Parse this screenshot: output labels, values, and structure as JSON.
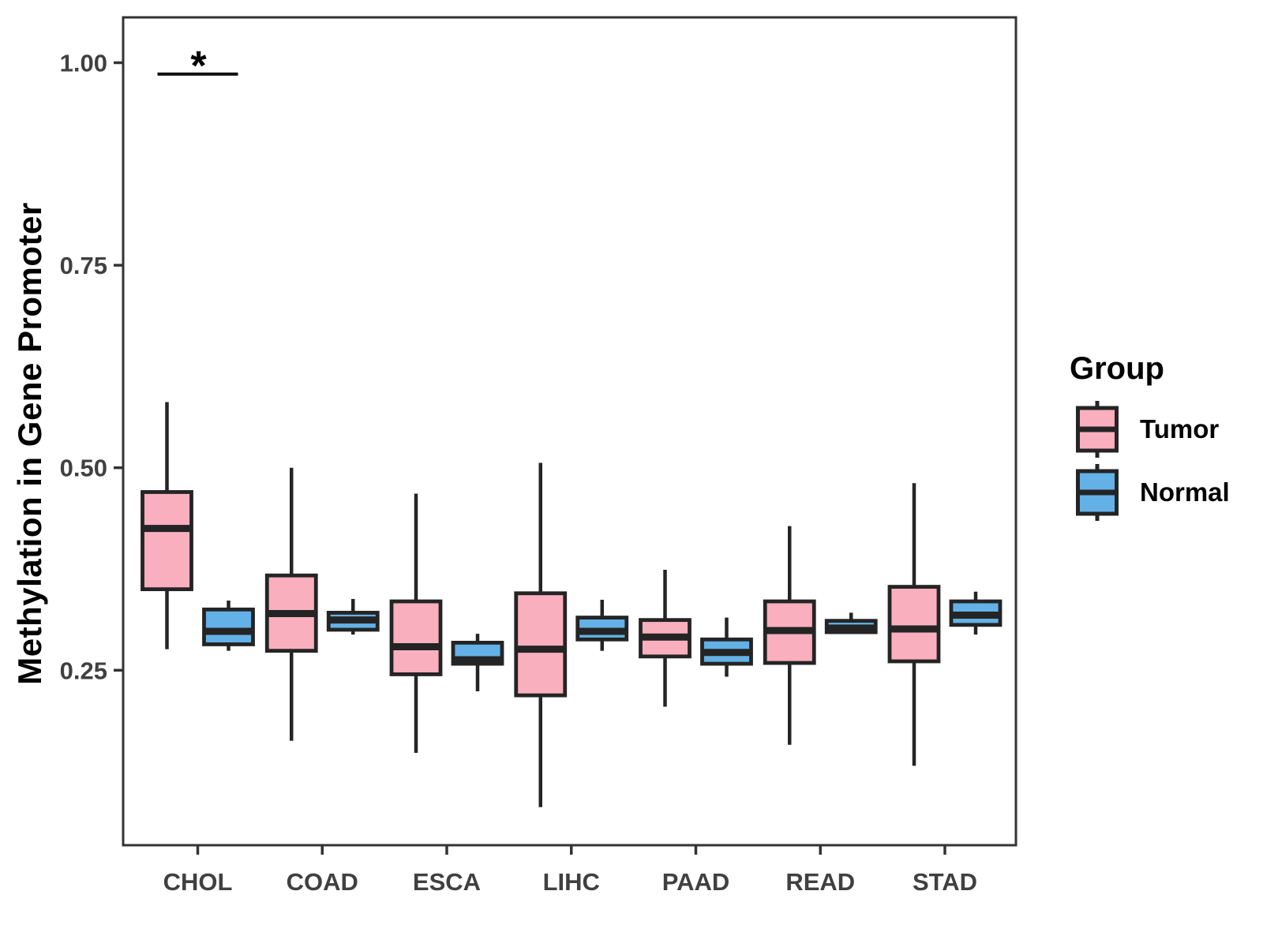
{
  "chart_data": {
    "type": "boxplot",
    "title": "",
    "xlabel": "",
    "ylabel": "Methylation in Gene Promoter",
    "grid": "off",
    "y_axis": {
      "ticks": [
        1.0,
        0.75,
        0.5,
        0.25
      ],
      "tick_labels": [
        "1.00",
        "0.75",
        "0.50",
        "0.25"
      ],
      "range": [
        0.034,
        1.056
      ]
    },
    "categories": [
      "CHOL",
      "COAD",
      "ESCA",
      "LIHC",
      "PAAD",
      "READ",
      "STAD"
    ],
    "legend": {
      "title": "Group",
      "position": "right",
      "entries": [
        {
          "label": "Tumor",
          "color": "#F9AFBE"
        },
        {
          "label": "Normal",
          "color": "#63B1E6"
        }
      ]
    },
    "series": [
      {
        "name": "Tumor",
        "color": "#F9AFBE",
        "boxes": [
          {
            "category": "CHOL",
            "whisker_low": 0.276,
            "q1": 0.35,
            "median": 0.425,
            "q3": 0.47,
            "whisker_high": 0.581
          },
          {
            "category": "COAD",
            "whisker_low": 0.163,
            "q1": 0.274,
            "median": 0.32,
            "q3": 0.367,
            "whisker_high": 0.5
          },
          {
            "category": "ESCA",
            "whisker_low": 0.148,
            "q1": 0.245,
            "median": 0.279,
            "q3": 0.335,
            "whisker_high": 0.468
          },
          {
            "category": "LIHC",
            "whisker_low": 0.081,
            "q1": 0.219,
            "median": 0.276,
            "q3": 0.345,
            "whisker_high": 0.506
          },
          {
            "category": "PAAD",
            "whisker_low": 0.205,
            "q1": 0.267,
            "median": 0.291,
            "q3": 0.312,
            "whisker_high": 0.374
          },
          {
            "category": "READ",
            "whisker_low": 0.158,
            "q1": 0.259,
            "median": 0.299,
            "q3": 0.335,
            "whisker_high": 0.428
          },
          {
            "category": "STAD",
            "whisker_low": 0.132,
            "q1": 0.261,
            "median": 0.301,
            "q3": 0.353,
            "whisker_high": 0.481
          }
        ]
      },
      {
        "name": "Normal",
        "color": "#63B1E6",
        "boxes": [
          {
            "category": "CHOL",
            "whisker_low": 0.274,
            "q1": 0.282,
            "median": 0.298,
            "q3": 0.325,
            "whisker_high": 0.336
          },
          {
            "category": "COAD",
            "whisker_low": 0.294,
            "q1": 0.3,
            "median": 0.312,
            "q3": 0.321,
            "whisker_high": 0.338
          },
          {
            "category": "ESCA",
            "whisker_low": 0.224,
            "q1": 0.258,
            "median": 0.263,
            "q3": 0.284,
            "whisker_high": 0.295
          },
          {
            "category": "LIHC",
            "whisker_low": 0.274,
            "q1": 0.288,
            "median": 0.298,
            "q3": 0.315,
            "whisker_high": 0.337
          },
          {
            "category": "PAAD",
            "whisker_low": 0.242,
            "q1": 0.258,
            "median": 0.272,
            "q3": 0.288,
            "whisker_high": 0.315
          },
          {
            "category": "READ",
            "whisker_low": 0.295,
            "q1": 0.297,
            "median": 0.302,
            "q3": 0.311,
            "whisker_high": 0.321
          },
          {
            "category": "STAD",
            "whisker_low": 0.294,
            "q1": 0.306,
            "median": 0.318,
            "q3": 0.335,
            "whisker_high": 0.347
          }
        ]
      }
    ],
    "annotations": [
      {
        "type": "significance-bracket",
        "categories": [
          "CHOL"
        ],
        "label": "*",
        "bar_y": 0.986
      }
    ],
    "style": {
      "box_outline": "#242424",
      "axis_line": "#333333",
      "axis_text": "#404040",
      "annotation_color": "#111111",
      "background": "#FFFFFF"
    }
  }
}
